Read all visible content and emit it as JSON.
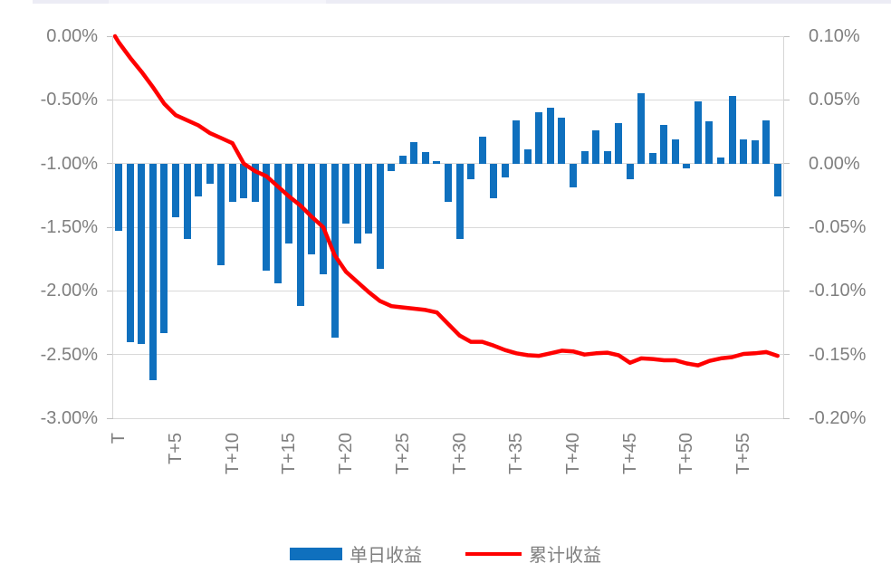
{
  "page": {
    "top_strip": {
      "base_color": "#ececf5",
      "light_segment_color": "#f4f4fa"
    }
  },
  "colors": {
    "bar": "#0f70be",
    "line": "#ff0000",
    "grid": "#d9d9d9",
    "axis": "#d6d6d6",
    "tick": "#c0c0c0",
    "label": "#7f7f7f"
  },
  "legend": {
    "items": [
      {
        "label": "单日收益",
        "swatch": "bar"
      },
      {
        "label": "累计收益",
        "swatch": "line"
      }
    ]
  },
  "chart_data": {
    "type": "bar",
    "subtype": "bar+line dual axis",
    "title": "",
    "n_points": 59,
    "x_tick_every": 5,
    "x_tick_labels": [
      "T",
      "T+5",
      "T+10",
      "T+15",
      "T+20",
      "T+25",
      "T+30",
      "T+35",
      "T+40",
      "T+45",
      "T+50",
      "T+55"
    ],
    "grid": true,
    "legend_position": "bottom",
    "left_axis": {
      "ticks": [
        "0.00%",
        "-0.50%",
        "-1.00%",
        "-1.50%",
        "-2.00%",
        "-2.50%",
        "-3.00%"
      ],
      "max": 0.0,
      "min": -3.0,
      "maps_to": "cumulative line series"
    },
    "right_axis": {
      "ticks": [
        "0.10%",
        "0.05%",
        "0.00%",
        "-0.05%",
        "-0.10%",
        "-0.15%",
        "-0.20%"
      ],
      "max": 0.1,
      "min": -0.2,
      "maps_to": "daily bar series"
    },
    "series": [
      {
        "name": "单日收益",
        "type": "bar",
        "axis": "right",
        "color": "#0f70be",
        "values_pct": [
          -0.053,
          -0.14,
          -0.142,
          -0.17,
          -0.133,
          -0.042,
          -0.059,
          -0.026,
          -0.016,
          -0.08,
          -0.03,
          -0.027,
          -0.03,
          -0.084,
          -0.094,
          -0.063,
          -0.112,
          -0.071,
          -0.087,
          -0.137,
          -0.047,
          -0.063,
          -0.055,
          -0.083,
          -0.006,
          0.006,
          0.017,
          0.009,
          0.002,
          -0.03,
          -0.059,
          -0.012,
          0.021,
          -0.027,
          -0.011,
          0.034,
          0.011,
          0.04,
          0.044,
          0.036,
          -0.019,
          0.01,
          0.026,
          0.01,
          0.032,
          -0.012,
          0.055,
          0.008,
          0.03,
          0.019,
          -0.004,
          0.049,
          0.033,
          0.005,
          0.053,
          0.019,
          0.018,
          0.034,
          -0.026
        ]
      },
      {
        "name": "累计收益",
        "type": "line",
        "axis": "left",
        "color": "#ff0000",
        "start_value_pct": 0.0,
        "values_pct": [
          -0.05,
          -0.17,
          -0.28,
          -0.4,
          -0.53,
          -0.62,
          -0.66,
          -0.7,
          -0.76,
          -0.8,
          -0.84,
          -1.0,
          -1.06,
          -1.1,
          -1.18,
          -1.26,
          -1.33,
          -1.42,
          -1.5,
          -1.72,
          -1.85,
          -1.93,
          -2.01,
          -2.08,
          -2.12,
          -2.13,
          -2.14,
          -2.15,
          -2.17,
          -2.26,
          -2.35,
          -2.4,
          -2.4,
          -2.43,
          -2.465,
          -2.49,
          -2.505,
          -2.51,
          -2.49,
          -2.47,
          -2.475,
          -2.5,
          -2.49,
          -2.485,
          -2.505,
          -2.565,
          -2.53,
          -2.535,
          -2.545,
          -2.545,
          -2.57,
          -2.585,
          -2.55,
          -2.53,
          -2.52,
          -2.495,
          -2.49,
          -2.48,
          -2.51
        ]
      }
    ]
  }
}
